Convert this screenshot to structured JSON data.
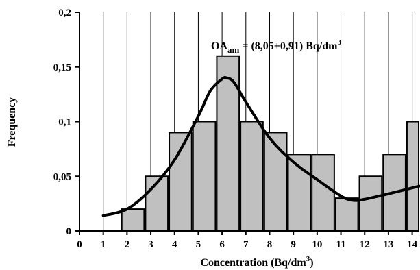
{
  "chart_data": {
    "type": "bar",
    "xlabel": "Concentration (Bq/dm",
    "xlabel_sup": "3",
    "xlabel_end": ")",
    "ylabel": "Frequency",
    "xlim": [
      0,
      14.3
    ],
    "ylim": [
      0,
      0.2
    ],
    "x_ticks": [
      "0",
      "1",
      "2",
      "3",
      "4",
      "5",
      "6",
      "7",
      "8",
      "9",
      "10",
      "11",
      "12",
      "13",
      "14"
    ],
    "y_ticks": [
      {
        "value": 0,
        "label": "0"
      },
      {
        "value": 0.05,
        "label": "0,05"
      },
      {
        "value": 0.1,
        "label": "0,1"
      },
      {
        "value": 0.15,
        "label": "0,15"
      },
      {
        "value": 0.2,
        "label": "0,2"
      }
    ],
    "bars": [
      {
        "from": 1.75,
        "to": 2.75,
        "value": 0.02
      },
      {
        "from": 2.75,
        "to": 3.75,
        "value": 0.05
      },
      {
        "from": 3.75,
        "to": 4.75,
        "value": 0.09
      },
      {
        "from": 4.75,
        "to": 5.75,
        "value": 0.1
      },
      {
        "from": 5.75,
        "to": 6.75,
        "value": 0.16
      },
      {
        "from": 6.75,
        "to": 7.75,
        "value": 0.1
      },
      {
        "from": 7.75,
        "to": 8.75,
        "value": 0.09
      },
      {
        "from": 8.75,
        "to": 9.75,
        "value": 0.07
      },
      {
        "from": 9.75,
        "to": 10.75,
        "value": 0.07
      },
      {
        "from": 10.75,
        "to": 11.75,
        "value": 0.03
      },
      {
        "from": 11.75,
        "to": 12.75,
        "value": 0.05
      },
      {
        "from": 12.75,
        "to": 13.75,
        "value": 0.07
      },
      {
        "from": 13.75,
        "to": 14.75,
        "value": 0.1
      }
    ],
    "fit_curve": {
      "x": [
        1,
        2,
        3,
        4,
        5,
        5.5,
        6,
        6.2,
        6.5,
        7,
        8,
        9,
        10,
        11,
        11.5,
        12,
        13,
        14.3
      ],
      "y": [
        0.014,
        0.02,
        0.038,
        0.065,
        0.105,
        0.128,
        0.139,
        0.14,
        0.136,
        0.118,
        0.085,
        0.063,
        0.047,
        0.032,
        0.028,
        0.029,
        0.034,
        0.041
      ]
    },
    "annotation": {
      "main": "OA",
      "sub": "am",
      "text": " = (8,05+0,91) Bq/dm",
      "sup": "3"
    },
    "grid": "vertical",
    "bar_color": "#c0c0c0",
    "edge_color": "#000000",
    "curve_color": "#000000"
  }
}
